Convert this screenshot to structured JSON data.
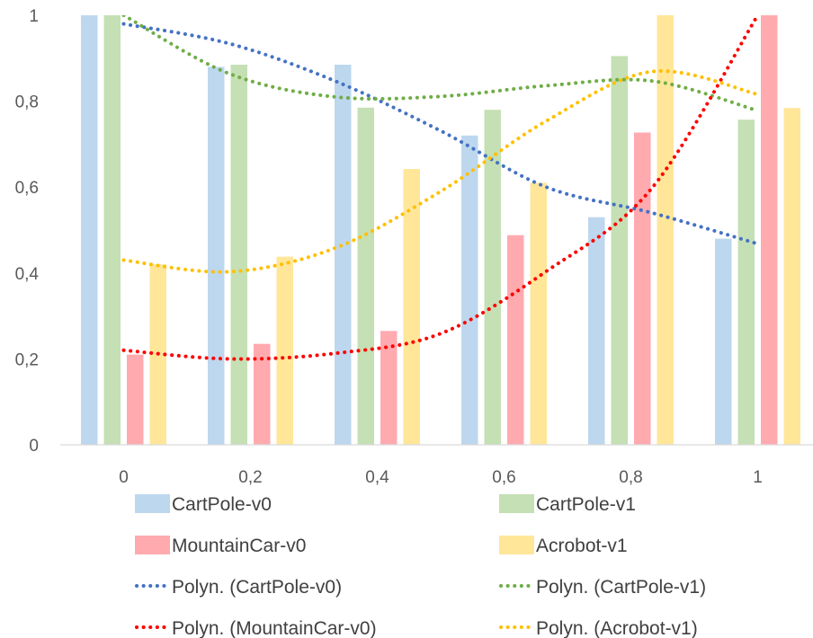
{
  "chart_data": {
    "type": "bar",
    "categories": [
      "0",
      "0,2",
      "0,4",
      "0,6",
      "0,8",
      "1"
    ],
    "series": [
      {
        "name": "CartPole-v0",
        "color": "#bdd7ee",
        "values": [
          1.0,
          0.88,
          0.885,
          0.72,
          0.53,
          0.48
        ]
      },
      {
        "name": "CartPole-v1",
        "color": "#c5e0b4",
        "values": [
          1.0,
          0.885,
          0.785,
          0.78,
          0.905,
          0.757
        ]
      },
      {
        "name": "MountainCar-v0",
        "color": "#ffaaaf",
        "values": [
          0.21,
          0.235,
          0.265,
          0.488,
          0.727,
          1.0
        ]
      },
      {
        "name": "Acrobot-v1",
        "color": "#ffe699",
        "values": [
          0.42,
          0.438,
          0.642,
          0.61,
          1.0,
          0.784
        ]
      }
    ],
    "trendlines": [
      {
        "name": "Polyn. (CartPole-v0)",
        "color": "#4472c4",
        "points": [
          0.98,
          0.934,
          0.847,
          0.731,
          0.6,
          0.54,
          0.468
        ]
      },
      {
        "name": "Polyn. (CartPole-v1)",
        "color": "#70ad47",
        "points": [
          1.0,
          0.864,
          0.81,
          0.811,
          0.836,
          0.847,
          0.778
        ]
      },
      {
        "name": "Polyn. (MountainCar-v0)",
        "color": "#ff0000",
        "points": [
          0.22,
          0.2,
          0.213,
          0.259,
          0.404,
          0.598,
          1.0
        ]
      },
      {
        "name": "Polyn. (Acrobot-v1)",
        "color": "#ffc000",
        "points": [
          0.43,
          0.403,
          0.458,
          0.59,
          0.754,
          0.869,
          0.816
        ]
      }
    ],
    "yticks": [
      "0",
      "0,2",
      "0,4",
      "0,6",
      "0,8",
      "1"
    ],
    "ylim": [
      0,
      1
    ],
    "legend_position": "bottom",
    "grid": false
  }
}
